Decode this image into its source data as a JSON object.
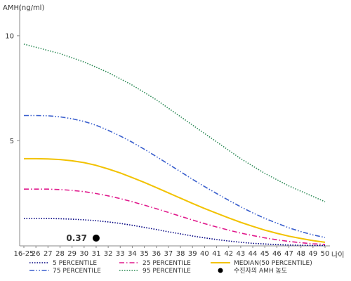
{
  "chart_data": {
    "type": "line",
    "ylabel": "AMH(ng/ml)",
    "xlabel": "나이",
    "categories": [
      "16-25",
      "26",
      "27",
      "28",
      "29",
      "30",
      "31",
      "32",
      "33",
      "34",
      "35",
      "36",
      "37",
      "38",
      "39",
      "40",
      "41",
      "42",
      "43",
      "44",
      "45",
      "46",
      "47",
      "48",
      "49",
      "50"
    ],
    "yticks": [
      5,
      10
    ],
    "ylim": [
      0,
      11.5
    ],
    "series": [
      {
        "name": "5 PERCENTILE",
        "color": "#000080",
        "dash": "dotted",
        "values": [
          1.3,
          1.3,
          1.3,
          1.29,
          1.27,
          1.24,
          1.2,
          1.14,
          1.07,
          0.98,
          0.88,
          0.78,
          0.67,
          0.57,
          0.47,
          0.38,
          0.3,
          0.23,
          0.17,
          0.12,
          0.09,
          0.06,
          0.04,
          0.03,
          0.02,
          0.02
        ]
      },
      {
        "name": "25 PERCENTILE",
        "color": "#e0198c",
        "dash": "dashdot",
        "values": [
          2.7,
          2.7,
          2.7,
          2.68,
          2.64,
          2.58,
          2.49,
          2.38,
          2.25,
          2.1,
          1.94,
          1.77,
          1.59,
          1.41,
          1.23,
          1.06,
          0.9,
          0.75,
          0.61,
          0.49,
          0.38,
          0.29,
          0.21,
          0.15,
          0.1,
          0.07
        ]
      },
      {
        "name": "MEDIAN(50 PERCENTILE)",
        "color": "#f2c200",
        "dash": "solid",
        "values": [
          4.15,
          4.15,
          4.14,
          4.11,
          4.05,
          3.96,
          3.83,
          3.66,
          3.47,
          3.25,
          3.02,
          2.77,
          2.52,
          2.27,
          2.02,
          1.78,
          1.55,
          1.33,
          1.12,
          0.93,
          0.75,
          0.6,
          0.46,
          0.35,
          0.25,
          0.17
        ]
      },
      {
        "name": "75 PERCENTILE",
        "color": "#3a5fcd",
        "dash": "dashdotdot",
        "values": [
          6.2,
          6.2,
          6.19,
          6.14,
          6.05,
          5.92,
          5.74,
          5.5,
          5.23,
          4.93,
          4.6,
          4.25,
          3.89,
          3.53,
          3.17,
          2.82,
          2.49,
          2.17,
          1.86,
          1.57,
          1.31,
          1.08,
          0.86,
          0.68,
          0.52,
          0.4
        ]
      },
      {
        "name": "95 PERCENTILE",
        "color": "#2e8b57",
        "dash": "dotted",
        "values": [
          9.6,
          9.45,
          9.3,
          9.15,
          8.95,
          8.75,
          8.5,
          8.25,
          7.95,
          7.65,
          7.3,
          6.95,
          6.55,
          6.15,
          5.75,
          5.35,
          4.95,
          4.55,
          4.15,
          3.8,
          3.45,
          3.15,
          2.85,
          2.6,
          2.35,
          2.1
        ]
      }
    ],
    "point": {
      "name": "수진자의 AMH 농도",
      "x": "31",
      "y": 0.37,
      "label": "0.37",
      "color": "#000000"
    },
    "legend_position": "bottom",
    "grid": false
  }
}
